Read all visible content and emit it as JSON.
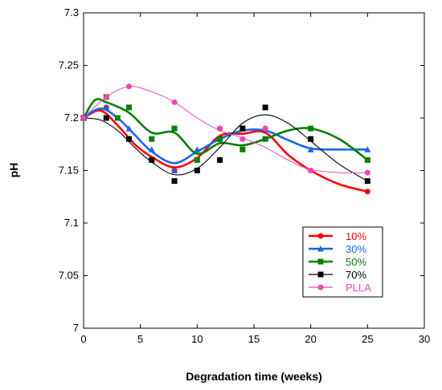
{
  "chart_data": {
    "type": "scatter",
    "xlabel": "Degradation time (weeks)",
    "ylabel": "pH",
    "xlim": [
      0,
      30
    ],
    "ylim": [
      7,
      7.3
    ],
    "xticks": [
      "0",
      "5",
      "10",
      "15",
      "20",
      "25",
      "30"
    ],
    "yticks": [
      "7",
      "7.05",
      "7.1",
      "7.15",
      "7.2",
      "7.25",
      "7.3"
    ],
    "grid": false,
    "legend_position": "bottom-right",
    "series": [
      {
        "name": "10%",
        "color": "#ff0000",
        "marker": "circle",
        "points": [
          [
            0,
            7.2
          ],
          [
            2,
            7.21
          ],
          [
            4,
            7.18
          ],
          [
            6,
            7.16
          ],
          [
            8,
            7.15
          ],
          [
            12,
            7.19
          ],
          [
            14,
            7.18
          ],
          [
            16,
            7.19
          ],
          [
            20,
            7.15
          ],
          [
            25,
            7.13
          ]
        ],
        "curve": [
          [
            0,
            7.2
          ],
          [
            1.5,
            7.207
          ],
          [
            3,
            7.193
          ],
          [
            4.5,
            7.175
          ],
          [
            6,
            7.163
          ],
          [
            8,
            7.153
          ],
          [
            10,
            7.162
          ],
          [
            12,
            7.183
          ],
          [
            14,
            7.185
          ],
          [
            16,
            7.186
          ],
          [
            18,
            7.165
          ],
          [
            20,
            7.15
          ],
          [
            22.5,
            7.137
          ],
          [
            25,
            7.13
          ]
        ]
      },
      {
        "name": "30%",
        "color": "#1a66e6",
        "marker": "triangle",
        "points": [
          [
            0,
            7.2
          ],
          [
            2,
            7.21
          ],
          [
            4,
            7.19
          ],
          [
            6,
            7.17
          ],
          [
            8,
            7.15
          ],
          [
            10,
            7.17
          ],
          [
            12,
            7.18
          ],
          [
            14,
            7.19
          ],
          [
            16,
            7.19
          ],
          [
            20,
            7.17
          ],
          [
            25,
            7.17
          ]
        ],
        "curve": [
          [
            0,
            7.2
          ],
          [
            1.5,
            7.209
          ],
          [
            3,
            7.2
          ],
          [
            4.5,
            7.184
          ],
          [
            6,
            7.168
          ],
          [
            8,
            7.157
          ],
          [
            10,
            7.168
          ],
          [
            12,
            7.18
          ],
          [
            14,
            7.188
          ],
          [
            16,
            7.188
          ],
          [
            18,
            7.179
          ],
          [
            20,
            7.171
          ],
          [
            22.5,
            7.17
          ],
          [
            25,
            7.17
          ]
        ]
      },
      {
        "name": "50%",
        "color": "#008000",
        "marker": "square",
        "points": [
          [
            0,
            7.2
          ],
          [
            2,
            7.22
          ],
          [
            3,
            7.2
          ],
          [
            4,
            7.21
          ],
          [
            6,
            7.18
          ],
          [
            8,
            7.19
          ],
          [
            10,
            7.16
          ],
          [
            12,
            7.18
          ],
          [
            14,
            7.17
          ],
          [
            16,
            7.18
          ],
          [
            20,
            7.19
          ],
          [
            25,
            7.16
          ]
        ],
        "curve": [
          [
            0,
            7.2
          ],
          [
            1,
            7.217
          ],
          [
            2,
            7.215
          ],
          [
            4,
            7.205
          ],
          [
            6,
            7.186
          ],
          [
            8,
            7.186
          ],
          [
            10,
            7.166
          ],
          [
            12,
            7.176
          ],
          [
            14,
            7.174
          ],
          [
            16,
            7.18
          ],
          [
            18,
            7.188
          ],
          [
            20,
            7.19
          ],
          [
            22.5,
            7.18
          ],
          [
            25,
            7.16
          ]
        ]
      },
      {
        "name": "70%",
        "color": "#000000",
        "marker": "square",
        "points": [
          [
            0,
            7.2
          ],
          [
            2,
            7.2
          ],
          [
            4,
            7.18
          ],
          [
            6,
            7.16
          ],
          [
            8,
            7.14
          ],
          [
            10,
            7.15
          ],
          [
            12,
            7.16
          ],
          [
            14,
            7.19
          ],
          [
            16,
            7.21
          ],
          [
            20,
            7.18
          ],
          [
            25,
            7.14
          ]
        ],
        "curve": [
          [
            0,
            7.2
          ],
          [
            1.5,
            7.198
          ],
          [
            3,
            7.188
          ],
          [
            4.5,
            7.172
          ],
          [
            6,
            7.158
          ],
          [
            8,
            7.146
          ],
          [
            10,
            7.152
          ],
          [
            12,
            7.172
          ],
          [
            14,
            7.195
          ],
          [
            16,
            7.203
          ],
          [
            18,
            7.195
          ],
          [
            20,
            7.178
          ],
          [
            22.5,
            7.156
          ],
          [
            25,
            7.14
          ]
        ]
      },
      {
        "name": "PLLA",
        "color": "#ee44bb",
        "marker": "circle",
        "points": [
          [
            0,
            7.2
          ],
          [
            2,
            7.22
          ],
          [
            4,
            7.23
          ],
          [
            8,
            7.215
          ],
          [
            12,
            7.19
          ],
          [
            14,
            7.18
          ],
          [
            16,
            7.19
          ],
          [
            20,
            7.15
          ],
          [
            25,
            7.148
          ]
        ],
        "curve": [
          [
            0,
            7.2
          ],
          [
            2,
            7.22
          ],
          [
            4,
            7.23
          ],
          [
            6,
            7.225
          ],
          [
            8,
            7.215
          ],
          [
            10,
            7.2
          ],
          [
            12,
            7.188
          ],
          [
            14,
            7.181
          ],
          [
            16,
            7.172
          ],
          [
            18,
            7.16
          ],
          [
            20,
            7.151
          ],
          [
            22.5,
            7.148
          ],
          [
            25,
            7.148
          ]
        ]
      }
    ]
  }
}
